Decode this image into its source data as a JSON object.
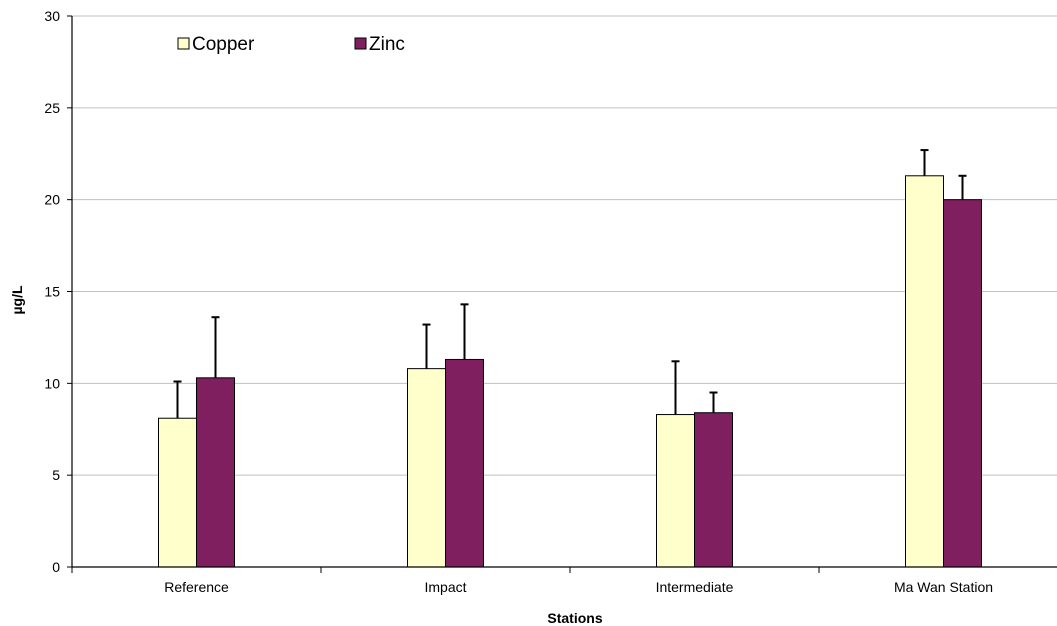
{
  "chart_data": {
    "type": "bar",
    "title": "",
    "xlabel": "Stations",
    "ylabel": "µg/L",
    "ylim": [
      0,
      30
    ],
    "yticks": [
      0,
      5,
      10,
      15,
      20,
      25,
      30
    ],
    "grid": true,
    "legend_position": "top-left",
    "categories": [
      "Reference",
      "Impact",
      "Intermediate",
      "Ma Wan Station"
    ],
    "series": [
      {
        "name": "Copper",
        "color": "#ffffcc",
        "values": [
          8.1,
          10.8,
          8.3,
          21.3
        ],
        "error": [
          2.0,
          2.4,
          2.9,
          1.4
        ]
      },
      {
        "name": "Zinc",
        "color": "#7f1f5f",
        "values": [
          10.3,
          11.3,
          8.4,
          20.0
        ],
        "error": [
          3.3,
          3.0,
          1.1,
          1.3
        ]
      }
    ]
  }
}
